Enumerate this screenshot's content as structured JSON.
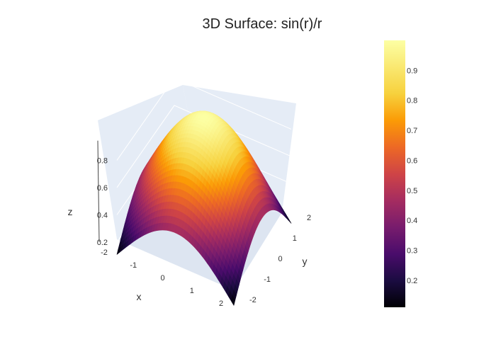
{
  "chart_data": {
    "type": "surface",
    "title": "3D Surface: sin(r)/r",
    "function": "sin(r)/r",
    "x": {
      "label": "x",
      "range": [
        -2,
        2
      ],
      "ticks": [
        -2,
        -1,
        0,
        1,
        2
      ]
    },
    "y": {
      "label": "y",
      "range": [
        -2,
        2
      ],
      "ticks": [
        -2,
        -1,
        0,
        1,
        2
      ]
    },
    "z": {
      "label": "z",
      "range": [
        0.2,
        1.0
      ],
      "ticks": [
        0.2,
        0.4,
        0.6,
        0.8
      ]
    },
    "colorbar": {
      "colorscale": "Inferno",
      "range": [
        0.11,
        1.0
      ],
      "ticks": [
        0.2,
        0.3,
        0.4,
        0.5,
        0.6,
        0.7,
        0.8,
        0.9
      ]
    },
    "colors": {
      "scene_background": "#e5ecf6",
      "grid": "#ffffff"
    }
  }
}
